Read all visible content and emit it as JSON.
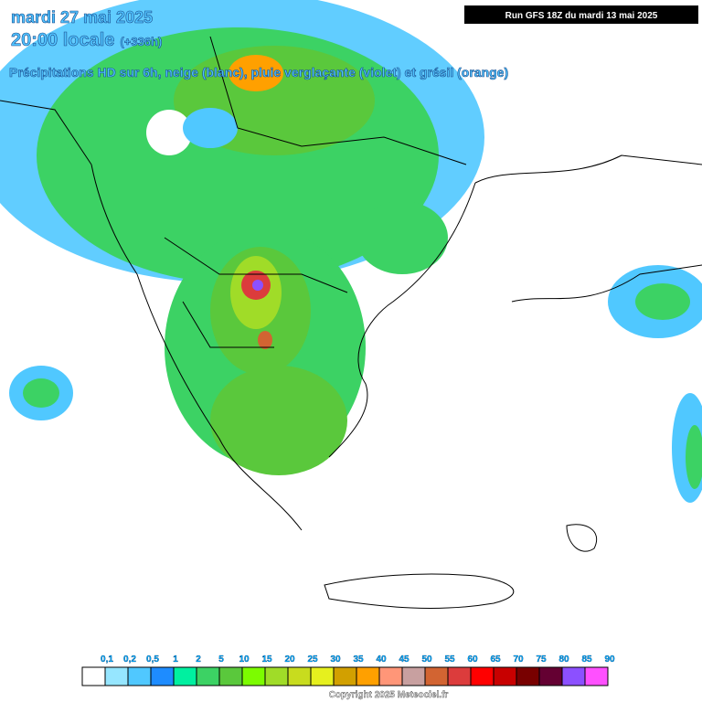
{
  "header": {
    "date": "mardi 27 mai 2025",
    "time": "20:00 locale",
    "offset": "(+336h)",
    "subtitle": "Précipitations HD sur 6h, neige (blanc), pluie verglaçante (violet) et grésil (orange)",
    "run": "Run GFS 18Z du mardi 13 mai 2025"
  },
  "legend": {
    "labels": [
      "0,1",
      "0,2",
      "0,5",
      "1",
      "2",
      "5",
      "10",
      "15",
      "20",
      "25",
      "30",
      "35",
      "40",
      "45",
      "50",
      "55",
      "60",
      "65",
      "70",
      "75",
      "80",
      "85",
      "90"
    ],
    "colors": [
      "#ffffff",
      "#96e6ff",
      "#50c8ff",
      "#1e8cff",
      "#00f0a0",
      "#3cd264",
      "#5ac83c",
      "#7cfc00",
      "#a0dc28",
      "#c8dc1e",
      "#e6f01e",
      "#d2a000",
      "#ffa000",
      "#ff9678",
      "#c8a0a0",
      "#d26432",
      "#dc3c3c",
      "#ff0000",
      "#c80000",
      "#780000",
      "#640032",
      "#8c50ff",
      "#ff50ff"
    ]
  },
  "footer": {
    "copyright": "Copyright 2025 Meteociel.fr"
  }
}
